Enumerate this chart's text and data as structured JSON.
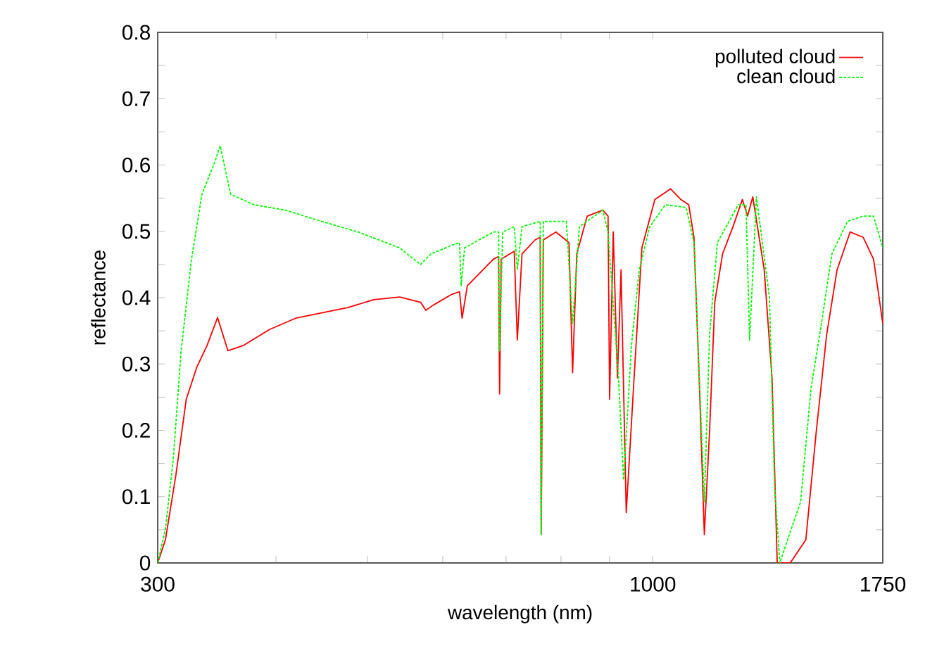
{
  "chart_data": {
    "type": "line",
    "xlabel": "wavelength (nm)",
    "ylabel": "reflectance",
    "log": "x",
    "legend": "top right",
    "grid": false,
    "marker": "none",
    "xlim": [
      300,
      1750
    ],
    "ylim": [
      0,
      0.8
    ],
    "xticks": [
      300,
      {
        "value": 400,
        "label": null
      },
      {
        "value": 500,
        "label": null
      },
      {
        "value": 600,
        "label": null
      },
      {
        "value": 700,
        "label": null
      },
      {
        "value": 800,
        "label": null
      },
      {
        "value": 900,
        "label": null
      },
      1000,
      1750
    ],
    "yticks": [
      0,
      {
        "value": 0.05,
        "label": null
      },
      0.1,
      {
        "value": 0.15,
        "label": null
      },
      0.2,
      {
        "value": 0.25,
        "label": null
      },
      0.3,
      {
        "value": 0.35,
        "label": null
      },
      0.4,
      {
        "value": 0.45,
        "label": null
      },
      0.5,
      {
        "value": 0.55,
        "label": null
      },
      0.6,
      {
        "value": 0.65,
        "label": null
      },
      0.7,
      {
        "value": 0.75,
        "label": null
      },
      0.8
    ],
    "series": [
      {
        "name": "polluted cloud",
        "color": "#ff0000",
        "line_style": "solid",
        "x": [
          300,
          305.7,
          313.6,
          321.6,
          329.9,
          338.3,
          347.0,
          355.9,
          369.7,
          393.8,
          419.6,
          447.0,
          476.2,
          507.3,
          540.4,
          568.5,
          575.8,
          586.8,
          613.4,
          625.1,
          629.0,
          637.0,
          678.7,
          687.3,
          689.1,
          691.7,
          714.0,
          719.4,
          727.7,
          751.1,
          760.6,
          762.5,
          766.4,
          790.3,
          815.7,
          822.9,
          831.3,
          852.7,
          885.7,
          897.0,
          900.4,
          908.4,
          917.7,
          925.8,
          937.6,
          955.6,
          973.9,
          1005.2,
          1044.2,
          1070.9,
          1091.5,
          1105.4,
          1119.5,
          1133.7,
          1148.2,
          1162.8,
          1185.1,
          1215.5,
          1243.5,
          1259.4,
          1275.4,
          1311.4,
          1336.6,
          1353.5,
          1397.1,
          1451.2,
          1488.4,
          1526.5,
          1565.7,
          1616.2,
          1668.2,
          1711.0,
          1750
        ],
        "values": [
          0,
          0.035,
          0.133,
          0.247,
          0.295,
          0.328,
          0.37,
          0.32,
          0.328,
          0.352,
          0.369,
          0.377,
          0.385,
          0.397,
          0.401,
          0.393,
          0.381,
          0.389,
          0.405,
          0.409,
          0.369,
          0.418,
          0.458,
          0.462,
          0.255,
          0.458,
          0.47,
          0.336,
          0.466,
          0.487,
          0.491,
          0.043,
          0.487,
          0.499,
          0.483,
          0.287,
          0.466,
          0.523,
          0.532,
          0.523,
          0.247,
          0.499,
          0.279,
          0.442,
          0.076,
          0.279,
          0.475,
          0.548,
          0.564,
          0.548,
          0.54,
          0.491,
          0.279,
          0.043,
          0.198,
          0.393,
          0.466,
          0.507,
          0.548,
          0.523,
          0.552,
          0.442,
          0.279,
          0,
          0,
          0.035,
          0.198,
          0.344,
          0.442,
          0.499,
          0.491,
          0.458,
          0.361
        ]
      },
      {
        "name": "clean cloud",
        "color": "#00ff00",
        "line_style": "dashed",
        "x": [
          300,
          305.7,
          311.6,
          317.6,
          325.7,
          334.1,
          344.8,
          349.2,
          358.2,
          379.2,
          409.1,
          447.0,
          488.4,
          540.4,
          568.5,
          583.0,
          613.4,
          625.1,
          627.5,
          632.9,
          678.7,
          687.3,
          689.1,
          694.3,
          714.0,
          719.4,
          727.7,
          760.6,
          762.5,
          766.4,
          810.5,
          822.9,
          836.6,
          885.7,
          897.0,
          920.1,
          931.7,
          949.5,
          967.7,
          992.6,
          1031.1,
          1084.5,
          1105.4,
          1133.7,
          1148.2,
          1170.2,
          1230.9,
          1254.6,
          1265.7,
          1286.8,
          1328.1,
          1344.9,
          1362.1,
          1388.2,
          1432.8,
          1469.6,
          1507.3,
          1546.1,
          1606.0,
          1668.2,
          1711.0,
          1750
        ],
        "values": [
          0,
          0.051,
          0.157,
          0.32,
          0.458,
          0.556,
          0.605,
          0.629,
          0.556,
          0.54,
          0.532,
          0.515,
          0.499,
          0.475,
          0.45,
          0.466,
          0.479,
          0.483,
          0.418,
          0.475,
          0.499,
          0.499,
          0.32,
          0.499,
          0.507,
          0.442,
          0.507,
          0.515,
          0.043,
          0.515,
          0.515,
          0.361,
          0.507,
          0.532,
          0.499,
          0.279,
          0.125,
          0.328,
          0.442,
          0.507,
          0.54,
          0.536,
          0.483,
          0.092,
          0.344,
          0.483,
          0.54,
          0.54,
          0.336,
          0.552,
          0.401,
          0.116,
          0,
          0.035,
          0.092,
          0.263,
          0.361,
          0.466,
          0.515,
          0.523,
          0.523,
          0.475
        ]
      }
    ]
  }
}
